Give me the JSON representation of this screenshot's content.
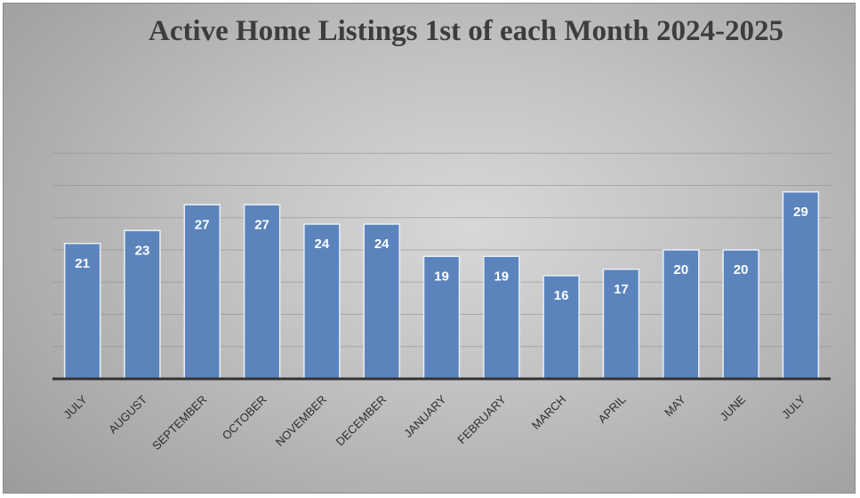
{
  "chart_data": {
    "type": "bar",
    "title": "Active Home Listings 1st of each Month  2024-2025",
    "categories": [
      "JULY",
      "AUGUST",
      "SEPTEMBER",
      "OCTOBER",
      "NOVEMBER",
      "DECEMBER",
      "JANUARY",
      "FEBRUARY",
      "MARCH",
      "APRIL",
      "MAY",
      "JUNE",
      "JULY"
    ],
    "series": [
      {
        "values": [
          21,
          23,
          27,
          27,
          24,
          24,
          19,
          19,
          16,
          17,
          20,
          20,
          29
        ]
      }
    ],
    "ylim": [
      0,
      35
    ],
    "xlabel": "",
    "ylabel": "",
    "grid": true,
    "legend": "none",
    "colors": {
      "bar": "#5b84bd",
      "bar_border": "#e8eef7",
      "gridline": "#8c8c8c",
      "axis": "#333333"
    }
  }
}
